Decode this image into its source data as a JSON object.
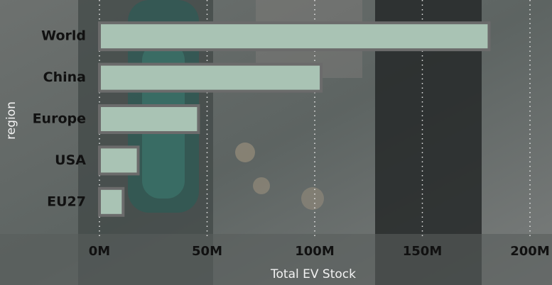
{
  "chart_data": {
    "type": "hbar",
    "x_label": "Total EV Stock",
    "y_label": "region",
    "categories": [
      "World",
      "China",
      "Europe",
      "USA",
      "EU27"
    ],
    "values": [
      181000000,
      103000000,
      46000000,
      18000000,
      11000000
    ],
    "color": "#a9c3b4",
    "xlim": [
      0,
      200000000
    ],
    "xticks": [
      {
        "value": 0,
        "label": "0M"
      },
      {
        "value": 50000000,
        "label": "50M"
      },
      {
        "value": 100000000,
        "label": "100M"
      },
      {
        "value": 150000000,
        "label": "150M"
      },
      {
        "value": 200000000,
        "label": "200M"
      }
    ],
    "grid": true
  }
}
